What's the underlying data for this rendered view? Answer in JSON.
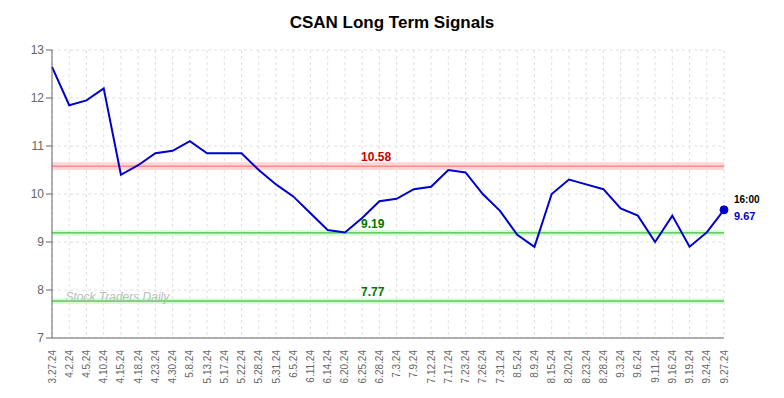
{
  "chart_data": {
    "type": "line",
    "title": "CSAN Long Term Signals",
    "categories": [
      "3.27.24",
      "4.2.24",
      "4.5.24",
      "4.10.24",
      "4.15.24",
      "4.18.24",
      "4.23.24",
      "4.30.24",
      "5.8.24",
      "5.13.24",
      "5.17.24",
      "5.22.24",
      "5.28.24",
      "5.31.24",
      "6.5.24",
      "6.11.24",
      "6.14.24",
      "6.20.24",
      "6.25.24",
      "6.28.24",
      "7.3.24",
      "7.9.24",
      "7.12.24",
      "7.17.24",
      "7.23.24",
      "7.26.24",
      "7.31.24",
      "8.5.24",
      "8.9.24",
      "8.15.24",
      "8.20.24",
      "8.23.24",
      "8.28.24",
      "9.3.24",
      "9.6.24",
      "9.11.24",
      "9.16.24",
      "9.19.24",
      "9.24.24",
      "9.27.24"
    ],
    "values": [
      12.65,
      11.85,
      11.95,
      12.2,
      10.4,
      10.6,
      10.85,
      10.9,
      11.1,
      10.85,
      10.85,
      10.85,
      10.5,
      10.2,
      9.95,
      9.6,
      9.25,
      9.2,
      9.5,
      9.85,
      9.9,
      10.1,
      10.15,
      10.5,
      10.45,
      10.0,
      9.65,
      9.15,
      8.9,
      10.0,
      10.3,
      10.2,
      10.1,
      9.7,
      9.55,
      9.0,
      9.55,
      8.9,
      9.2,
      9.67
    ],
    "color": "#0000cc",
    "marker": "circle",
    "ylim": [
      7,
      13
    ],
    "yticks": [
      7,
      8,
      9,
      10,
      11,
      12,
      13
    ],
    "grid": true,
    "reference_lines": [
      {
        "y": 10.58,
        "band": [
          10.5,
          10.66
        ],
        "color": "#ff6666",
        "band_color": "#ffcccc",
        "label": "10.58",
        "label_color": "#cc0000"
      },
      {
        "y": 9.19,
        "band": [
          9.13,
          9.25
        ],
        "color": "#22aa22",
        "band_color": "#ccffcc",
        "label": "9.19",
        "label_color": "#007700"
      },
      {
        "y": 7.77,
        "band": [
          7.71,
          7.83
        ],
        "color": "#22aa22",
        "band_color": "#ccffcc",
        "label": "7.77",
        "label_color": "#007700"
      }
    ],
    "end_labels": [
      {
        "text": "16:00",
        "color": "#000000"
      },
      {
        "text": "9.67",
        "color": "#0000cc"
      }
    ],
    "watermark": {
      "text": "Stock Traders Daily",
      "color": "#bbbbbb"
    }
  }
}
